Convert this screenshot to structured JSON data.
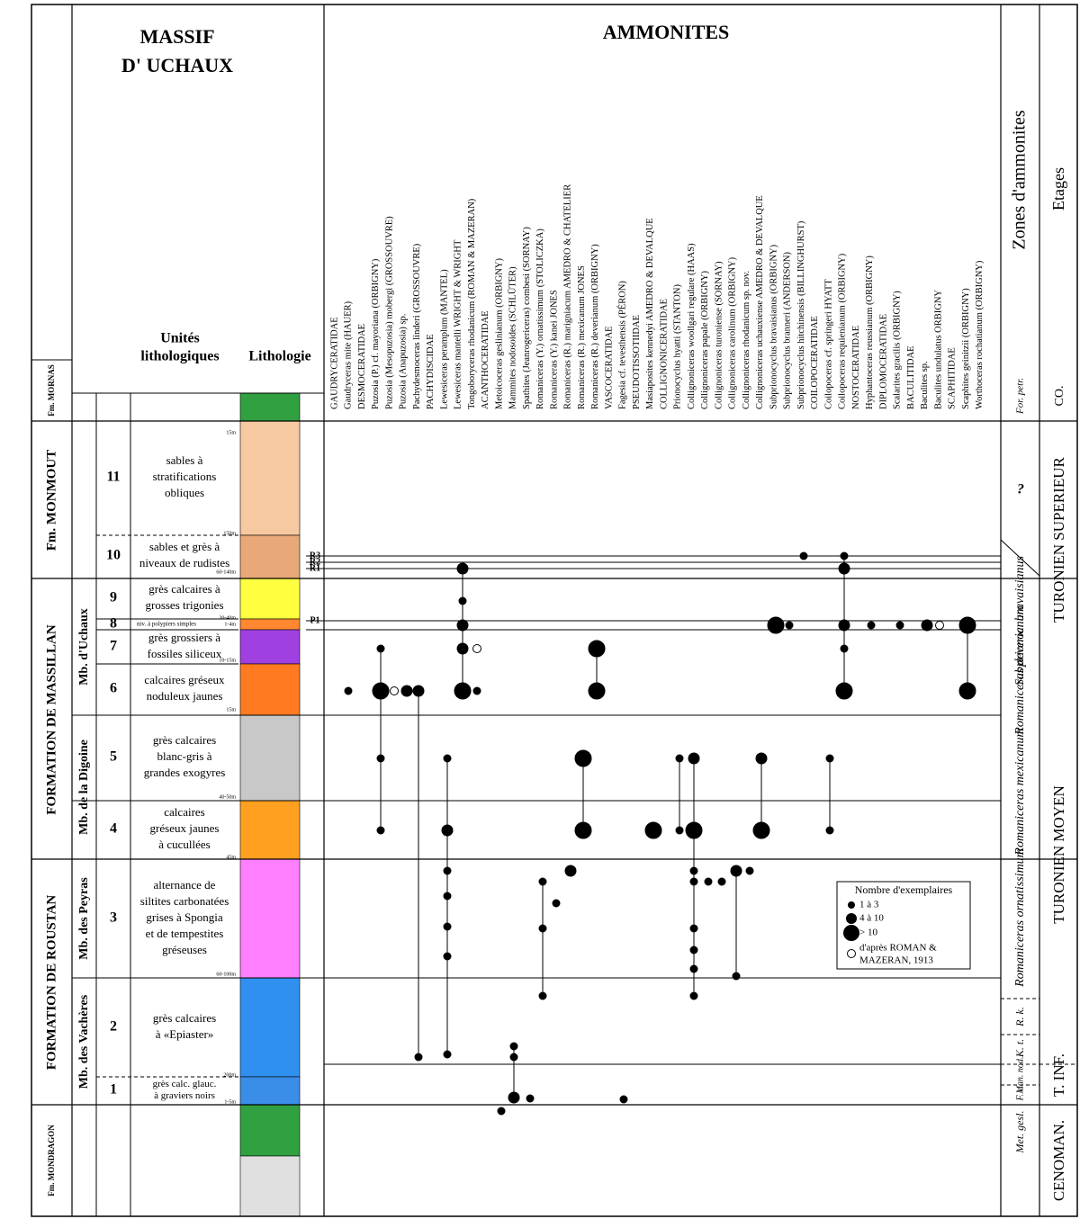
{
  "header": {
    "title": [
      "MASSIF",
      "D' UCHAUX"
    ],
    "ammonites": "AMMONITES",
    "units": [
      "Unités",
      "lithologiques"
    ],
    "lithology": "Lithologie",
    "zones": "Zones d'ammonites",
    "stages": "Etages"
  },
  "formations": [
    "Fm. MORNAS",
    "Fm. MONMOUT",
    "FORMATION DE MASSILLAN",
    "FORMATION DE ROUSTAN",
    "Fm. MONDRAGON"
  ],
  "members": [
    "Mb. d'Uchaux",
    "Mb. de la Digoine",
    "Mb. des Peyras",
    "Mb. des Vachères"
  ],
  "units": [
    {
      "number": "11",
      "description": [
        "sables à",
        "stratifications",
        "obliques"
      ]
    },
    {
      "number": "10",
      "description": [
        "sables et grès à",
        "niveaux de rudistes"
      ]
    },
    {
      "number": "9",
      "description": [
        "grès calcaires à",
        "grosses trigonies"
      ]
    },
    {
      "number": "8",
      "description": [
        "niv. à polypiers simples"
      ]
    },
    {
      "number": "7",
      "description": [
        "grès grossiers à",
        "fossiles siliceux"
      ]
    },
    {
      "number": "6",
      "description": [
        "calcaires gréseux",
        "noduleux jaunes"
      ]
    },
    {
      "number": "5",
      "description": [
        "grès calcaires",
        "blanc-gris à",
        "grandes exogyres"
      ]
    },
    {
      "number": "4",
      "description": [
        "calcaires",
        "gréseux jaunes",
        "à cucullées"
      ]
    },
    {
      "number": "3",
      "description": [
        "alternance de",
        "siltites carbonatées",
        "grises à Spongia",
        "et de tempestites",
        "gréseuses"
      ]
    },
    {
      "number": "2",
      "description": [
        "grès calcaires",
        "à «Epiaster»"
      ]
    },
    {
      "number": "1",
      "description": [
        "grès calc. glauc.",
        "à graviers noirs"
      ]
    }
  ],
  "thickness_labels": [
    "15m",
    "150m",
    "60-140m",
    "30-40m",
    "1-4m",
    "10-15m",
    "15m",
    "40-50m",
    "45m",
    "60-100m",
    "200m",
    "1-5m"
  ],
  "levels": [
    "R3",
    "R2",
    "R1",
    "P1"
  ],
  "taxa": [
    "GAUDRYCERATIDAE",
    "Gaudryceras mite (HAUER)",
    "DESMOCERATIDAE",
    "Puzosia (P.) cf. mayoriana (ORBIGNY)",
    "Puzosia (Mesopuzosia) mobergi (GROSSOUVRE)",
    "Puzosia (Anapuzosia) sp.",
    "Pachydesmoceras linderi (GROSSOUVRE)",
    "PACHYDISCIDAE",
    "Lewesiceras peramplum (MANTEL)",
    "Lewesiceras mantelli WRIGHT & WRIGHT",
    "Tongoboryceras rhodanicum (ROMAN & MAZERAN)",
    "ACANTHOCERATIDAE",
    "Metoicoceras geslinianum (ORBIGNY)",
    "Mammites nodosoides (SCHLÜTER)",
    "Spathites (Jeanrogericeras) combesi (SORNAY)",
    "Romaniceras (Y.) ornatissimum (STOLICZKA)",
    "Romaniceras (Y.) kanei JONES",
    "Romaniceras (R.) marigniacum AMEDRO & CHATELIER",
    "Romaniceras (R.) mexicanum JONES",
    "Romaniceras (R.) deverianum (ORBIGNY)",
    "VASCOCERATIDAE",
    "Fagesia cf. tevesthensis (PÉRON)",
    "PSEUDOTISSOTIIDAE",
    "Masiaposites kennedyi AMEDRO & DEVALQUE",
    "COLLIGNONICERATIDAE",
    "Prionocyclus hyatti (STANTON)",
    "Collignoniceras woollgari regulare (HAAS)",
    "Collignoniceras papale (ORBIGNY)",
    "Collignoniceras turoniense (SORNAY)",
    "Collignoniceras carolinum (ORBIGNY)",
    "Collignoniceras rhodanicum sp. nov.",
    "Collignoniceras uchauxiense AMEDRO & DEVALQUE",
    "Subprionocyclus bravaisianus (ORBIGNY)",
    "Subprionocyclus branneri (ANDERSON)",
    "Subprionocyclus hitchinensis (BILLINGHURST)",
    "COILOPOCERATIDAE",
    "Coilopoceras cf. springeri HYATT",
    "Coilopoceras requienianum (ORBIGNY)",
    "NOSTOCERATIDAE",
    "Hyphantoceras reussianum (ORBIGNY)",
    "DIPLOMOCERATIDAE",
    "Scalarites gracilis (ORBIGNY)",
    "BACULITIDAE",
    "Baculites sp.",
    "Baculites undulatus ORBIGNY",
    "SCAPHITIDAE",
    "Scaphites geinitzii (ORBIGNY)",
    "Worthoceras rochatianum (ORBIGNY)"
  ],
  "zones": [
    "For. petr.",
    "?",
    "Subprionoc. bravaisianus",
    "Romaniceras deverianum",
    "Romaniceras mexicanum",
    "Romaniceras ornatissimum",
    "R. k.",
    "K. t.",
    "Man. nod.",
    "F. c.",
    "Met. gesl."
  ],
  "stages": [
    "CO.",
    "TURONIEN SUPERIEUR",
    "TURONIEN MOYEN",
    "T. INF.",
    "CENOMAN."
  ],
  "legend": {
    "title": "Nombre d'exemplaires",
    "items": [
      "1 à 3",
      "4 à 10",
      "> 10",
      "d'après ROMAN &",
      "MAZERAN, 1913"
    ]
  }
}
